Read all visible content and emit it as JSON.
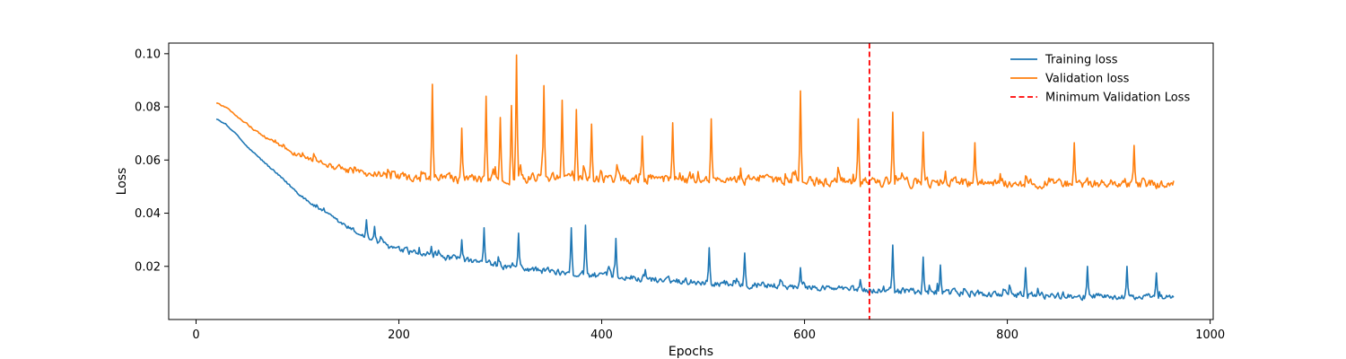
{
  "chart_data": {
    "type": "line",
    "title": "",
    "xlabel": "Epochs",
    "ylabel": "Loss",
    "xlim": [
      -27,
      1003
    ],
    "ylim": [
      0.0,
      0.104
    ],
    "xticks": [
      0,
      200,
      400,
      600,
      800,
      1000
    ],
    "xtick_labels": [
      "0",
      "200",
      "400",
      "600",
      "800",
      "1000"
    ],
    "yticks": [
      0.02,
      0.04,
      0.06,
      0.08,
      0.1
    ],
    "ytick_labels": [
      "0.02",
      "0.04",
      "0.06",
      "0.08",
      "0.10"
    ],
    "grid": false,
    "legend_position": "top-right",
    "x_start": 20,
    "x_end": 964,
    "series": [
      {
        "name": "Training loss",
        "color": "#1f77b4",
        "style": "solid",
        "anchors": [
          [
            20,
            0.0755
          ],
          [
            30,
            0.073
          ],
          [
            40,
            0.0695
          ],
          [
            50,
            0.065
          ],
          [
            60,
            0.0615
          ],
          [
            70,
            0.058
          ],
          [
            80,
            0.0545
          ],
          [
            90,
            0.051
          ],
          [
            100,
            0.0475
          ],
          [
            110,
            0.0445
          ],
          [
            120,
            0.0415
          ],
          [
            140,
            0.0365
          ],
          [
            160,
            0.032
          ],
          [
            180,
            0.0285
          ],
          [
            200,
            0.0255
          ],
          [
            250,
            0.0225
          ],
          [
            300,
            0.0195
          ],
          [
            350,
            0.0175
          ],
          [
            400,
            0.0158
          ],
          [
            450,
            0.0145
          ],
          [
            500,
            0.0135
          ],
          [
            550,
            0.0125
          ],
          [
            600,
            0.0116
          ],
          [
            650,
            0.0108
          ],
          [
            700,
            0.01
          ],
          [
            750,
            0.0094
          ],
          [
            800,
            0.0088
          ],
          [
            850,
            0.0084
          ],
          [
            900,
            0.008
          ],
          [
            964,
            0.0076
          ]
        ],
        "spikes": [
          [
            168,
            0.0375
          ],
          [
            176,
            0.035
          ],
          [
            232,
            0.0275
          ],
          [
            262,
            0.03
          ],
          [
            284,
            0.0345
          ],
          [
            318,
            0.0325
          ],
          [
            370,
            0.0345
          ],
          [
            384,
            0.0355
          ],
          [
            414,
            0.0305
          ],
          [
            506,
            0.027
          ],
          [
            541,
            0.025
          ],
          [
            596,
            0.0195
          ],
          [
            655,
            0.015
          ],
          [
            687,
            0.028
          ],
          [
            717,
            0.0235
          ],
          [
            734,
            0.0205
          ],
          [
            818,
            0.0195
          ],
          [
            879,
            0.02
          ],
          [
            918,
            0.02
          ],
          [
            947,
            0.0175
          ]
        ],
        "noise_amplitude": 0.0038
      },
      {
        "name": "Validation loss",
        "color": "#ff7f0e",
        "style": "solid",
        "anchors": [
          [
            20,
            0.0815
          ],
          [
            30,
            0.0795
          ],
          [
            40,
            0.0765
          ],
          [
            50,
            0.0735
          ],
          [
            60,
            0.0705
          ],
          [
            70,
            0.068
          ],
          [
            80,
            0.066
          ],
          [
            90,
            0.0635
          ],
          [
            100,
            0.0615
          ],
          [
            120,
            0.059
          ],
          [
            140,
            0.0565
          ],
          [
            160,
            0.0545
          ],
          [
            180,
            0.0535
          ],
          [
            200,
            0.0525
          ],
          [
            250,
            0.052
          ],
          [
            300,
            0.0522
          ],
          [
            350,
            0.0525
          ],
          [
            400,
            0.0522
          ],
          [
            450,
            0.052
          ],
          [
            500,
            0.0518
          ],
          [
            550,
            0.0515
          ],
          [
            600,
            0.0512
          ],
          [
            650,
            0.051
          ],
          [
            700,
            0.0508
          ],
          [
            750,
            0.0506
          ],
          [
            800,
            0.0505
          ],
          [
            850,
            0.0504
          ],
          [
            900,
            0.0503
          ],
          [
            964,
            0.0503
          ]
        ],
        "spikes": [
          [
            233,
            0.0885
          ],
          [
            262,
            0.072
          ],
          [
            286,
            0.084
          ],
          [
            300,
            0.076
          ],
          [
            311,
            0.0805
          ],
          [
            316,
            0.0995
          ],
          [
            343,
            0.088
          ],
          [
            361,
            0.0825
          ],
          [
            375,
            0.079
          ],
          [
            390,
            0.0735
          ],
          [
            440,
            0.069
          ],
          [
            470,
            0.074
          ],
          [
            508,
            0.0755
          ],
          [
            596,
            0.086
          ],
          [
            653,
            0.0755
          ],
          [
            687,
            0.078
          ],
          [
            717,
            0.0705
          ],
          [
            768,
            0.0665
          ],
          [
            866,
            0.0665
          ],
          [
            925,
            0.0655
          ]
        ],
        "noise_amplitude": 0.0055
      }
    ],
    "markers": [
      {
        "name": "Minimum Validation Loss",
        "type": "vline",
        "x": 664,
        "color": "#ff0000",
        "style": "dashed"
      }
    ]
  }
}
